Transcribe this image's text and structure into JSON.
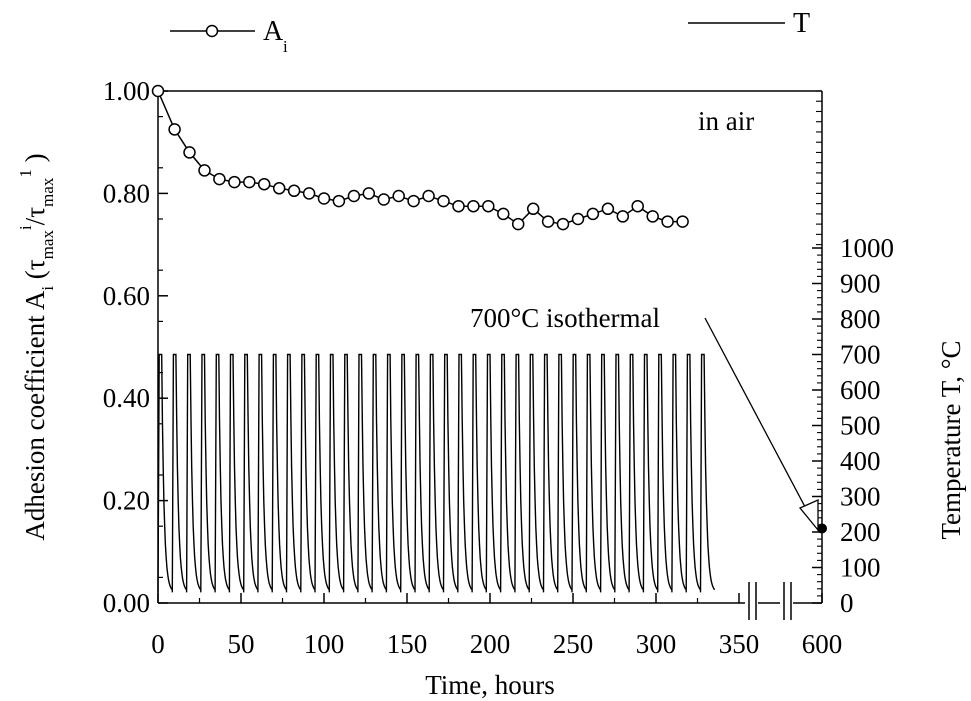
{
  "chart_data": {
    "type": "line",
    "xlabel": "Time, hours",
    "ylabel": {
      "main": "Adhesion coefficient A",
      "sub_i": "i",
      "open": " (",
      "tau1": "τ",
      "sub_max1": "max",
      "sup_i": "i",
      "slash": "/",
      "tau2": "τ",
      "sub_max2": "max",
      "sup_1": "1",
      "close": " )"
    },
    "y2label": "Temperature T, °C",
    "x_ticks": [
      "0",
      "50",
      "100",
      "150",
      "200",
      "250",
      "300",
      "350",
      "600"
    ],
    "x_tick_values": [
      0,
      50,
      100,
      150,
      200,
      250,
      300,
      350,
      600
    ],
    "x_axis_break": "between 350 and 600",
    "y_ticks": [
      "0.00",
      "0.20",
      "0.40",
      "0.60",
      "0.80",
      "1.00"
    ],
    "ylim": [
      0,
      1
    ],
    "y2_ticks": [
      "0",
      "100",
      "200",
      "300",
      "400",
      "500",
      "600",
      "700",
      "800",
      "900",
      "1000"
    ],
    "y2lim": [
      0,
      1000
    ],
    "legend": {
      "series1": {
        "label": "A",
        "sub": "i",
        "marker": "open-circle"
      },
      "series2": {
        "label": "T",
        "marker": "none"
      }
    },
    "annotations": {
      "in_air": "in air",
      "isothermal": "700°C isothermal"
    },
    "series": [
      {
        "name": "Ai",
        "axis": "left",
        "marker": "open-circle",
        "x": [
          0,
          10,
          19,
          28,
          37,
          46,
          55,
          64,
          73,
          82,
          91,
          100,
          109,
          118,
          127,
          136,
          145,
          154,
          163,
          172,
          181,
          190,
          199,
          208,
          217,
          226,
          235,
          244,
          253,
          262,
          271,
          280,
          289,
          298,
          307,
          316
        ],
        "y": [
          1.0,
          0.925,
          0.88,
          0.845,
          0.828,
          0.822,
          0.822,
          0.818,
          0.81,
          0.805,
          0.8,
          0.79,
          0.785,
          0.795,
          0.8,
          0.788,
          0.795,
          0.785,
          0.795,
          0.785,
          0.775,
          0.775,
          0.775,
          0.76,
          0.74,
          0.77,
          0.745,
          0.74,
          0.75,
          0.76,
          0.77,
          0.755,
          0.775,
          0.755,
          0.745,
          0.745
        ]
      },
      {
        "name": "T",
        "axis": "right",
        "marker": "none",
        "cycle_start_hours": [
          0,
          8.6,
          17.2,
          25.8,
          34.4,
          43.0,
          51.6,
          60.2,
          68.8,
          77.4,
          86.0,
          94.6,
          103.2,
          111.8,
          120.4,
          129.0,
          137.6,
          146.2,
          154.8,
          163.4,
          172.0,
          180.6,
          189.2,
          197.8,
          206.4,
          215.0,
          223.6,
          232.2,
          240.8,
          249.4,
          258.0,
          266.6,
          275.2,
          283.8,
          292.4,
          301.0,
          309.6,
          318.2,
          326.8
        ],
        "peak_temperature_C": 700,
        "min_temperature_C": 30,
        "isothermal_point": {
          "x": 600,
          "y": 210
        }
      }
    ]
  }
}
